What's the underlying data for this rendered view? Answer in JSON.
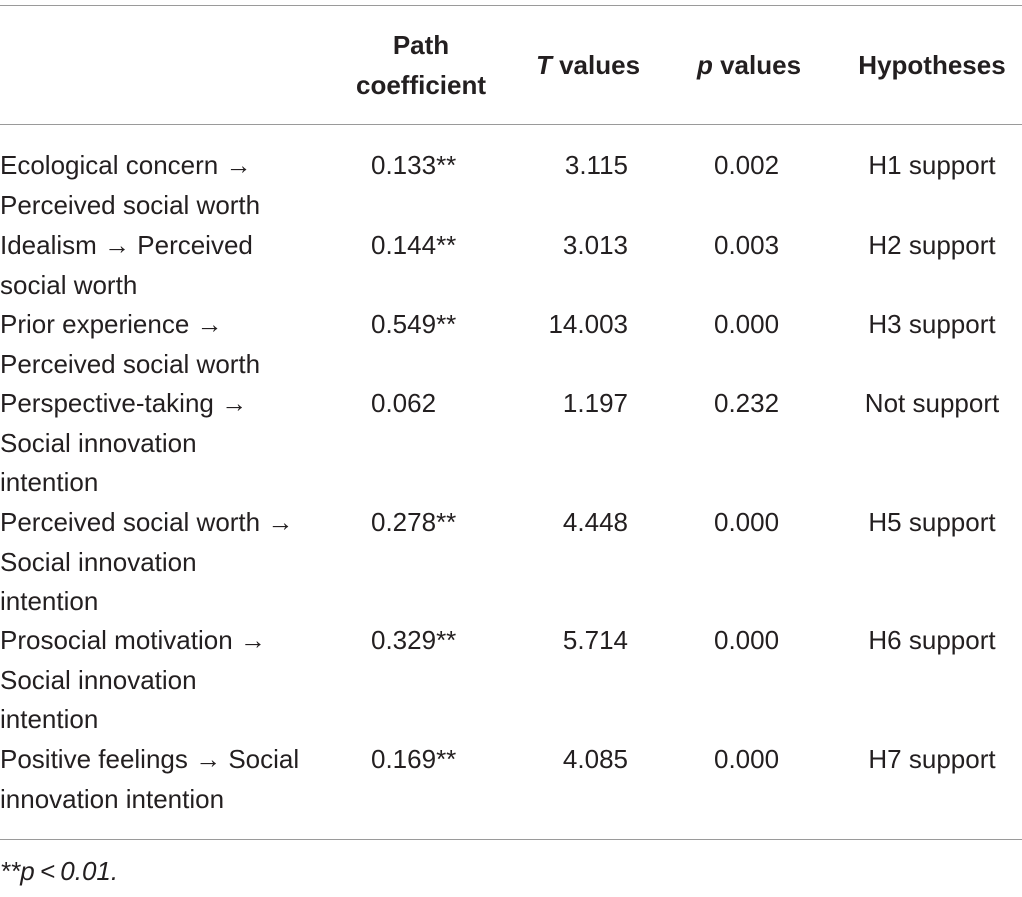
{
  "header": {
    "path_coefficient": [
      "Path",
      "coefficient"
    ],
    "t_values_italic": "T",
    "t_values_rest": " values",
    "p_values_italic": "p",
    "p_values_rest": " values",
    "hypotheses": "Hypotheses"
  },
  "rows": [
    {
      "relationship": [
        "Ecological concern →",
        "Perceived social worth"
      ],
      "path_coefficient": "0.133**",
      "t_value": "3.115",
      "p_value": "0.002",
      "hypothesis": "H1 support"
    },
    {
      "relationship": [
        "Idealism → Perceived",
        "social worth"
      ],
      "path_coefficient": "0.144**",
      "t_value": "3.013",
      "p_value": "0.003",
      "hypothesis": "H2 support"
    },
    {
      "relationship": [
        "Prior experience →",
        "Perceived social worth"
      ],
      "path_coefficient": "0.549**",
      "t_value": "14.003",
      "p_value": "0.000",
      "hypothesis": "H3 support"
    },
    {
      "relationship": [
        "Perspective-taking →",
        "Social innovation",
        "intention"
      ],
      "path_coefficient": "0.062",
      "t_value": "1.197",
      "p_value": "0.232",
      "hypothesis": "Not support"
    },
    {
      "relationship": [
        "Perceived social worth →",
        "Social innovation",
        "intention"
      ],
      "path_coefficient": "0.278**",
      "t_value": "4.448",
      "p_value": "0.000",
      "hypothesis": "H5 support"
    },
    {
      "relationship": [
        "Prosocial motivation →",
        "Social innovation",
        "intention"
      ],
      "path_coefficient": "0.329**",
      "t_value": "5.714",
      "p_value": "0.000",
      "hypothesis": "H6 support"
    },
    {
      "relationship": [
        "Positive feelings → Social",
        "innovation intention"
      ],
      "path_coefficient": "0.169**",
      "t_value": "4.085",
      "p_value": "0.000",
      "hypothesis": "H7 support"
    }
  ],
  "footnote": "**p < 0.01."
}
